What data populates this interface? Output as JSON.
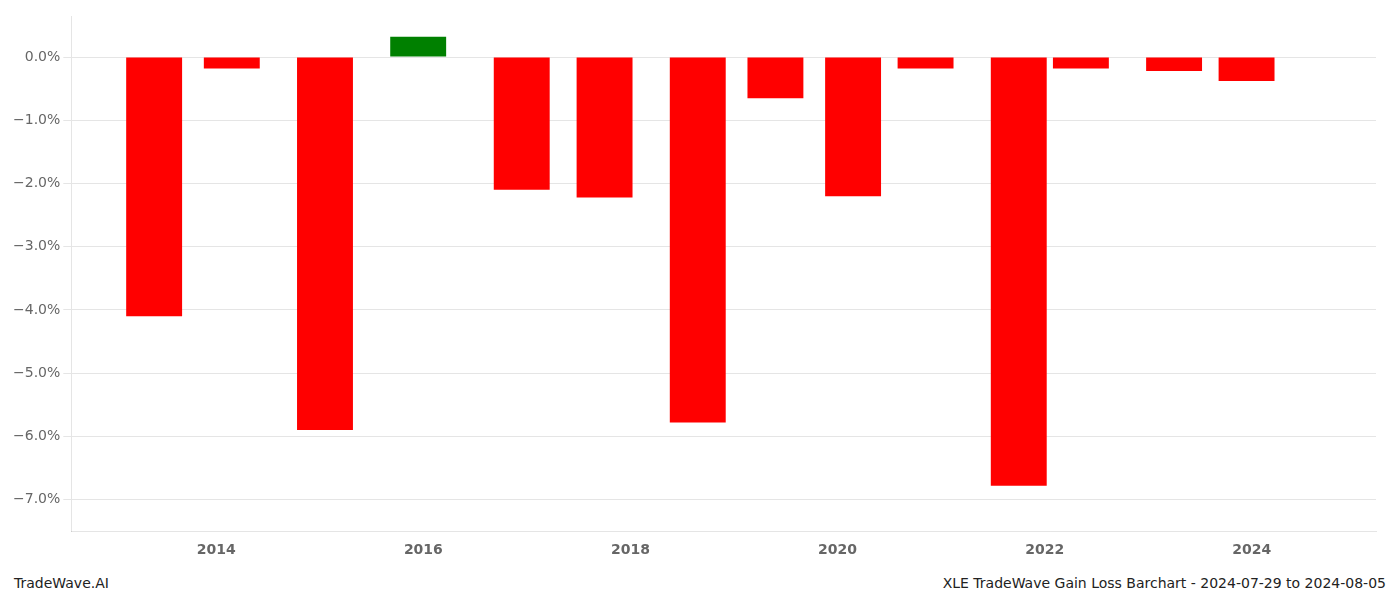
{
  "chart_data": {
    "type": "bar",
    "x": [
      2013.4,
      2014.15,
      2015.05,
      2015.95,
      2016.95,
      2017.75,
      2018.65,
      2019.4,
      2020.15,
      2020.85,
      2021.75,
      2022.35,
      2023.25,
      2023.95
    ],
    "values": [
      -4.1,
      -0.18,
      -5.9,
      0.32,
      -2.1,
      -2.22,
      -5.78,
      -0.65,
      -2.2,
      -0.18,
      -6.78,
      -0.18,
      -0.22,
      -0.38
    ],
    "colors": [
      "#ff0000",
      "#ff0000",
      "#ff0000",
      "#008000",
      "#ff0000",
      "#ff0000",
      "#ff0000",
      "#ff0000",
      "#ff0000",
      "#ff0000",
      "#ff0000",
      "#ff0000",
      "#ff0000",
      "#ff0000"
    ],
    "xlim": [
      2012.6,
      2025.2
    ],
    "xticks": [
      2014,
      2016,
      2018,
      2020,
      2022,
      2024
    ],
    "ylim": [
      -7.5,
      0.65
    ],
    "yticks": [
      {
        "value": 0.0,
        "label": "0.0%"
      },
      {
        "value": -1.0,
        "label": "−1.0%"
      },
      {
        "value": -2.0,
        "label": "−2.0%"
      },
      {
        "value": -3.0,
        "label": "−3.0%"
      },
      {
        "value": -4.0,
        "label": "−4.0%"
      },
      {
        "value": -5.0,
        "label": "−5.0%"
      },
      {
        "value": -6.0,
        "label": "−6.0%"
      },
      {
        "value": -7.0,
        "label": "−7.0%"
      }
    ],
    "grid": true,
    "annotations": [
      "TradeWave.AI",
      "XLE TradeWave Gain Loss Barchart - 2024-07-29 to 2024-08-05"
    ]
  }
}
